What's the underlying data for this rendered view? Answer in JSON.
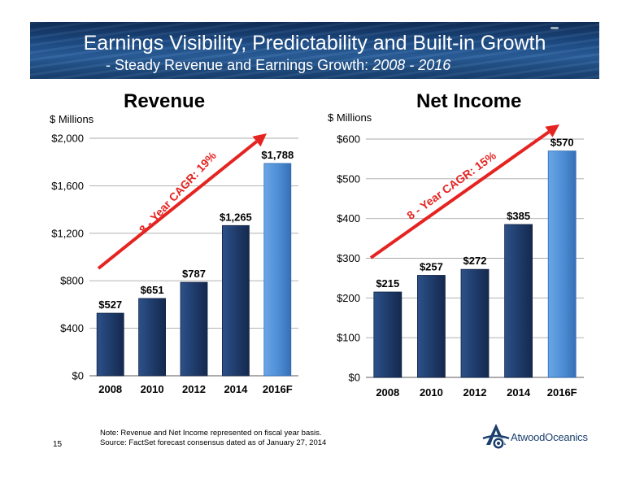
{
  "banner": {
    "title": "Earnings Visibility, Predictability and Built-in Growth",
    "subtitle_prefix": "- Steady Revenue and Earnings Growth: ",
    "subtitle_period": "2008 - 2016"
  },
  "chart_data": [
    {
      "type": "bar",
      "title": "Revenue",
      "ylabel": "$ Millions",
      "categories": [
        "2008",
        "2010",
        "2012",
        "2014",
        "2016F"
      ],
      "values": [
        527,
        651,
        787,
        1265,
        1788
      ],
      "value_labels": [
        "$527",
        "$651",
        "$787",
        "$1,265",
        "$1,788"
      ],
      "ylim": [
        0,
        2000
      ],
      "yticks": [
        0,
        400,
        800,
        1200,
        1600,
        2000
      ],
      "ytick_labels": [
        "$0",
        "$400",
        "$800",
        "$1,200",
        "$1,600",
        "$2,000"
      ],
      "forecast_category": "2016F",
      "annotation": "8 - Year CAGR: 19%",
      "grid": true,
      "colors": {
        "actual": "#1f3c6c",
        "forecast": "#4f8fd6",
        "arrow": "#e52421"
      }
    },
    {
      "type": "bar",
      "title": "Net Income",
      "ylabel": "$ Millions",
      "categories": [
        "2008",
        "2010",
        "2012",
        "2014",
        "2016F"
      ],
      "values": [
        215,
        257,
        272,
        385,
        570
      ],
      "value_labels": [
        "$215",
        "$257",
        "$272",
        "$385",
        "$570"
      ],
      "ylim": [
        0,
        600
      ],
      "yticks": [
        0,
        100,
        200,
        300,
        400,
        500,
        600
      ],
      "ytick_labels": [
        "$0",
        "$100",
        "$200",
        "$300",
        "$400",
        "$500",
        "$600"
      ],
      "forecast_category": "2016F",
      "annotation": "8 - Year CAGR: 15%",
      "grid": true,
      "colors": {
        "actual": "#1f3c6c",
        "forecast": "#4f8fd6",
        "arrow": "#e52421"
      }
    }
  ],
  "footer": {
    "note_line1": "Note: Revenue and Net Income represented on fiscal year basis.",
    "note_line2": "Source: FactSet forecast consensus dated as of January 27, 2014",
    "page_number": "15",
    "logo_text": "AtwoodOceanics"
  }
}
